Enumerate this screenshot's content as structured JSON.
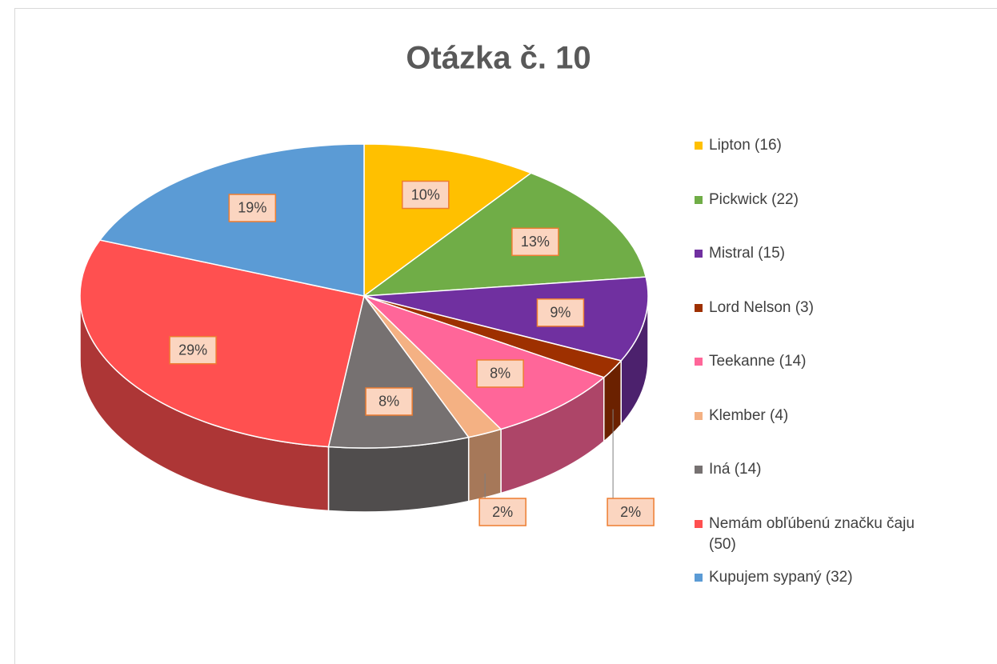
{
  "chart_data": {
    "type": "pie3d",
    "title": "Otázka č. 10",
    "categories": [
      "Lipton (16)",
      "Pickwick (22)",
      "Mistral (15)",
      "Lord Nelson (3)",
      "Teekanne (14)",
      "Klember (4)",
      "Iná (14)",
      "Nemám obľúbenú značku čaju (50)",
      "Kupujem sypaný (32)"
    ],
    "values": [
      10,
      13,
      9,
      2,
      8,
      2,
      8,
      29,
      19
    ],
    "value_labels": [
      "10%",
      "13%",
      "9%",
      "2%",
      "8%",
      "2%",
      "8%",
      "29%",
      "19%"
    ],
    "colors": [
      "#ffc000",
      "#70ad47",
      "#7030a0",
      "#9e3000",
      "#ff6699",
      "#f4b183",
      "#767171",
      "#ff5050",
      "#5b9bd5"
    ],
    "legend": "right"
  }
}
